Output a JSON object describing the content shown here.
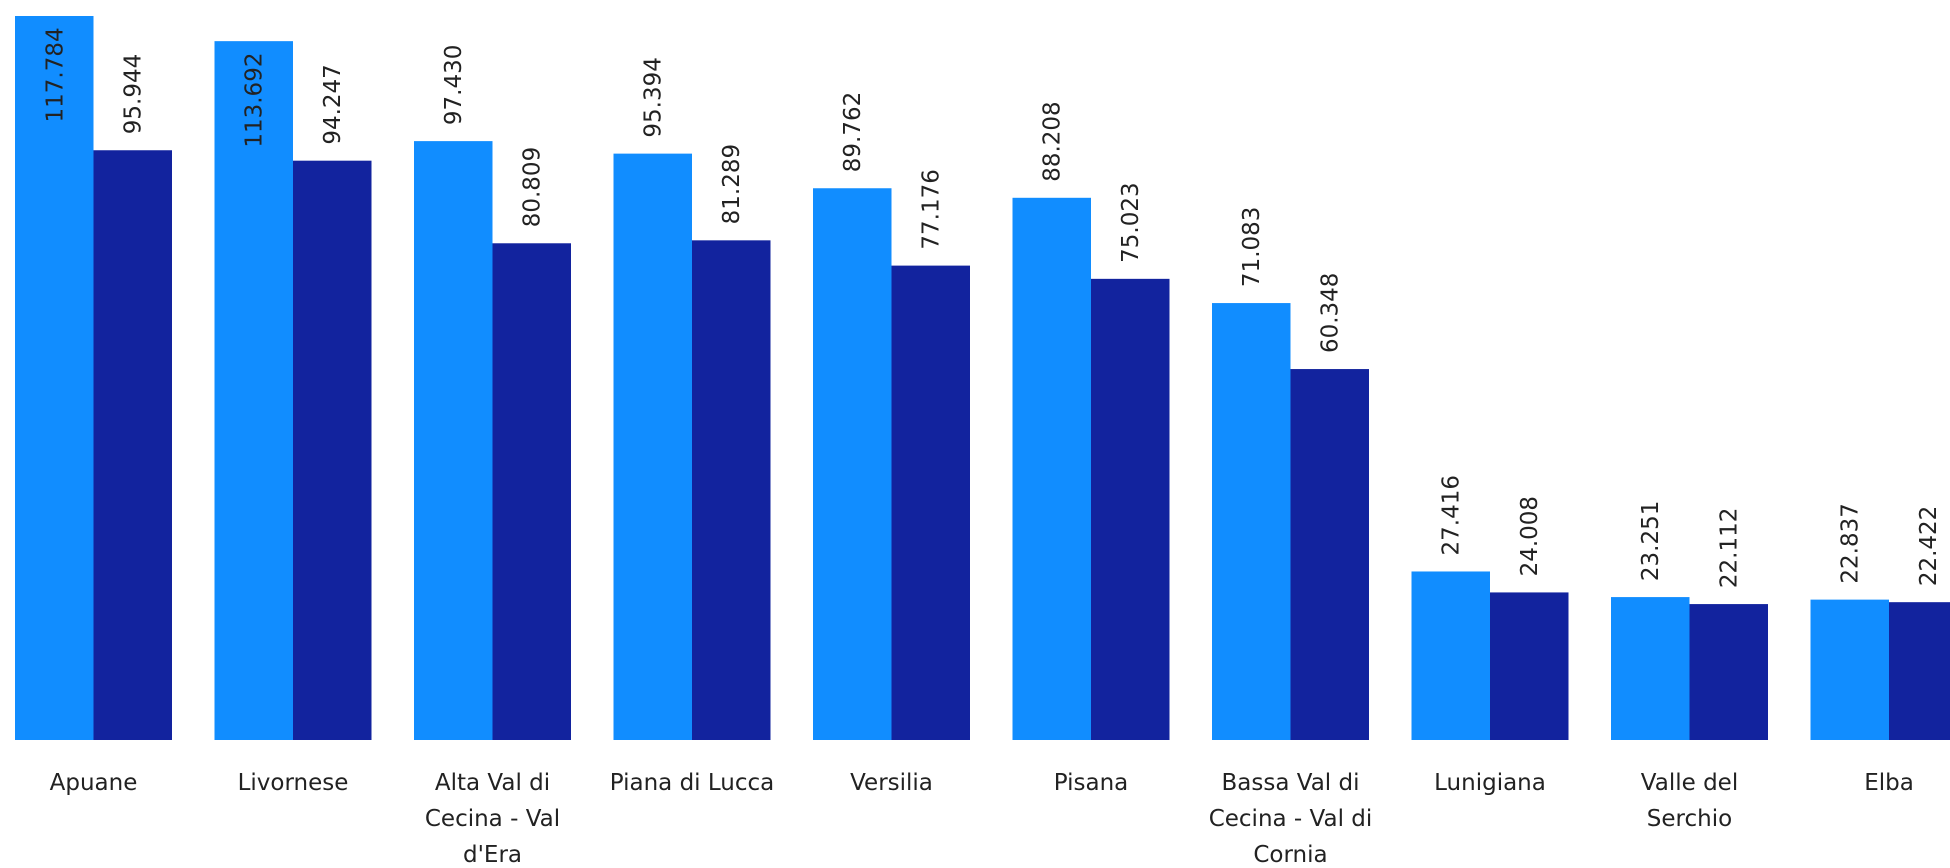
{
  "colors": {
    "series_a": "#118DFF",
    "series_b": "#12239E",
    "text": "#222222"
  },
  "chart_data": {
    "type": "bar",
    "title": "",
    "xlabel": "",
    "ylabel": "",
    "ylim": [
      0,
      117.784
    ],
    "grid": false,
    "legend": "none",
    "categories": [
      [
        "Apuane"
      ],
      [
        "Livornese"
      ],
      [
        "Alta Val di",
        "Cecina - Val",
        "d'Era"
      ],
      [
        "Piana di Lucca"
      ],
      [
        "Versilia"
      ],
      [
        "Pisana"
      ],
      [
        "Bassa Val di",
        "Cecina - Val di",
        "Cornia"
      ],
      [
        "Lunigiana"
      ],
      [
        "Valle del",
        "Serchio"
      ],
      [
        "Elba"
      ]
    ],
    "series": [
      {
        "values": [
          117.784,
          113.692,
          97.43,
          95.394,
          89.762,
          88.208,
          71.083,
          27.416,
          23.251,
          22.837
        ],
        "labels": [
          "117.784",
          "113.692",
          "97.430",
          "95.394",
          "89.762",
          "88.208",
          "71.083",
          "27.416",
          "23.251",
          "22.837"
        ]
      },
      {
        "values": [
          95.944,
          94.247,
          80.809,
          81.289,
          77.176,
          75.023,
          60.348,
          24.008,
          22.112,
          22.422
        ],
        "labels": [
          "95.944",
          "94.247",
          "80.809",
          "81.289",
          "77.176",
          "75.023",
          "60.348",
          "24.008",
          "22.112",
          "22.422"
        ]
      }
    ]
  }
}
